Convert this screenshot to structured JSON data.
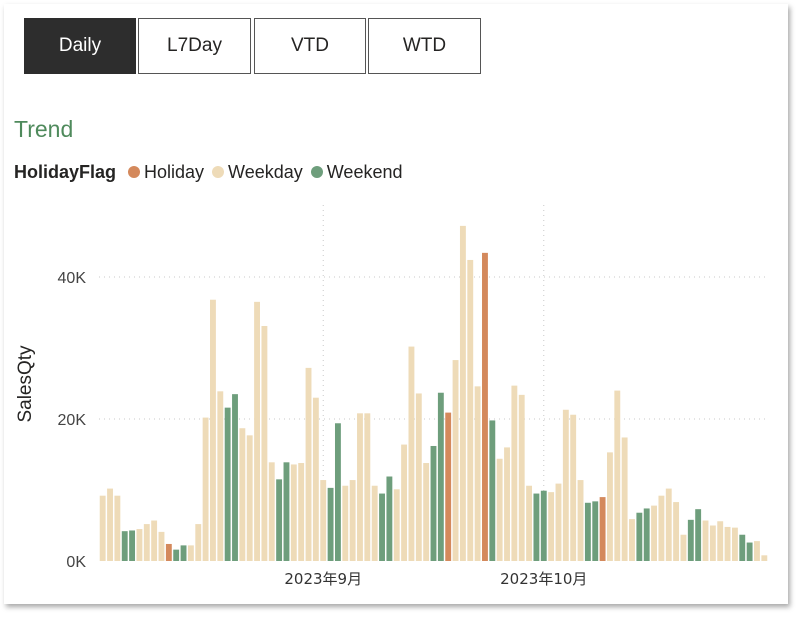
{
  "tabs": [
    {
      "label": "Daily",
      "active": true
    },
    {
      "label": "L7Day",
      "active": false
    },
    {
      "label": "VTD",
      "active": false
    },
    {
      "label": "WTD",
      "active": false
    }
  ],
  "visual_title": "Trend",
  "colors": {
    "Holiday": "#d4895c",
    "Weekday": "#eedbb8",
    "Weekend": "#6e9e7c",
    "title": "#4f8a5c"
  },
  "chart_data": {
    "type": "bar",
    "legend_title": "HolidayFlag",
    "legend": [
      "Holiday",
      "Weekday",
      "Weekend"
    ],
    "legend_position": "top-left",
    "ylabel": "SalesQty",
    "xlabel": "",
    "ylim": [
      0,
      48000
    ],
    "yticks": [
      {
        "value": 0,
        "label": "0K"
      },
      {
        "value": 20000,
        "label": "20K"
      },
      {
        "value": 40000,
        "label": "40K"
      }
    ],
    "xticks": [
      {
        "index": 30,
        "label": "2023年9月"
      },
      {
        "index": 60,
        "label": "2023年10月"
      }
    ],
    "grid": true,
    "values": [
      9200,
      10200,
      9200,
      4200,
      4300,
      4500,
      5200,
      5700,
      4100,
      2400,
      1600,
      2200,
      2200,
      5200,
      20200,
      36800,
      23900,
      21600,
      23500,
      18700,
      17700,
      36500,
      33100,
      13900,
      11500,
      13900,
      13600,
      13800,
      27200,
      23000,
      11400,
      10300,
      19400,
      10600,
      11400,
      20800,
      20800,
      10600,
      9500,
      11900,
      10100,
      16400,
      30200,
      23600,
      13800,
      16200,
      23700,
      20900,
      28300,
      47200,
      42400,
      24600,
      43400,
      19800,
      14400,
      16000,
      24700,
      23400,
      10600,
      9500,
      9900,
      9700,
      10900,
      21300,
      20600,
      11400,
      8200,
      8400,
      9000,
      15300,
      24000,
      17400,
      5900,
      6800,
      7400,
      7800,
      9200,
      10200,
      8300,
      3700,
      5800,
      7300,
      5700,
      5000,
      5600,
      4800,
      4700,
      3700,
      2600,
      2800,
      800
    ],
    "flags": [
      "Weekday",
      "Weekday",
      "Weekday",
      "Weekend",
      "Weekend",
      "Weekday",
      "Weekday",
      "Weekday",
      "Weekday",
      "Holiday",
      "Weekend",
      "Weekend",
      "Weekday",
      "Weekday",
      "Weekday",
      "Weekday",
      "Weekday",
      "Weekend",
      "Weekend",
      "Weekday",
      "Weekday",
      "Weekday",
      "Weekday",
      "Weekday",
      "Weekend",
      "Weekend",
      "Weekday",
      "Weekday",
      "Weekday",
      "Weekday",
      "Weekday",
      "Weekend",
      "Weekend",
      "Weekday",
      "Weekday",
      "Weekday",
      "Weekday",
      "Weekday",
      "Weekend",
      "Weekend",
      "Weekday",
      "Weekday",
      "Weekday",
      "Weekday",
      "Weekday",
      "Weekend",
      "Weekend",
      "Holiday",
      "Weekday",
      "Weekday",
      "Weekday",
      "Weekday",
      "Holiday",
      "Weekend",
      "Weekday",
      "Weekday",
      "Weekday",
      "Weekday",
      "Weekday",
      "Weekend",
      "Weekend",
      "Weekday",
      "Weekday",
      "Weekday",
      "Weekday",
      "Weekday",
      "Weekend",
      "Weekend",
      "Holiday",
      "Weekday",
      "Weekday",
      "Weekday",
      "Weekday",
      "Weekend",
      "Weekend",
      "Weekday",
      "Weekday",
      "Weekday",
      "Weekday",
      "Weekday",
      "Weekend",
      "Weekend",
      "Weekday",
      "Weekday",
      "Weekday",
      "Weekday",
      "Weekday",
      "Weekend",
      "Weekend",
      "Weekday",
      "Weekday"
    ]
  }
}
